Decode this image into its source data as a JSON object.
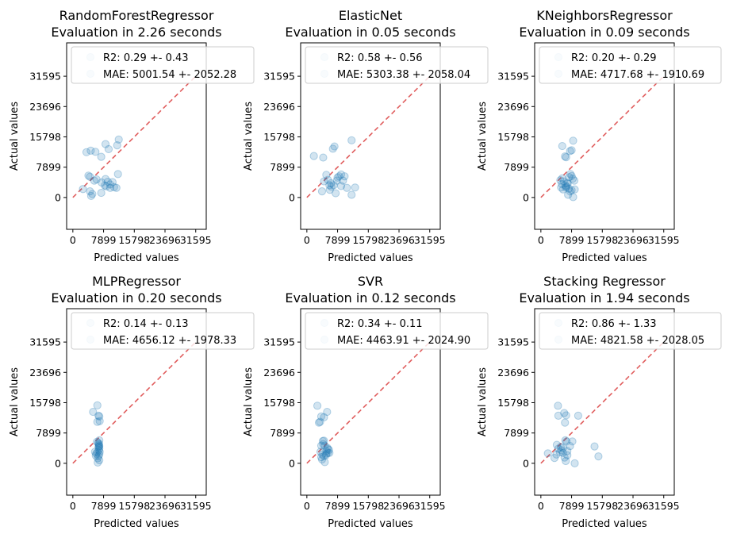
{
  "colors": {
    "point": "#1f77b4",
    "diagonal": "#d62728",
    "axes": "#000000",
    "legend_border": "#cccccc"
  },
  "chart_data": [
    {
      "type": "scatter",
      "title": "RandomForestRegressor",
      "subtitle": "Evaluation in 2.26 seconds",
      "xlabel": "Predicted values",
      "ylabel": "Actual values",
      "xlim": [
        -1600,
        34300
      ],
      "ylim": [
        -8300,
        40300
      ],
      "xticks": [
        0,
        7899,
        15798,
        23696,
        31595
      ],
      "yticks": [
        0,
        7899,
        15798,
        23696,
        31595
      ],
      "legend": [
        "R2: 0.29 +- 0.43",
        "MAE: 5001.54 +- 2052.28"
      ],
      "points": [
        [
          2600,
          2200
        ],
        [
          3500,
          11800
        ],
        [
          4600,
          12200
        ],
        [
          5800,
          11900
        ],
        [
          7300,
          10600
        ],
        [
          8400,
          13900
        ],
        [
          9200,
          12600
        ],
        [
          11400,
          13600
        ],
        [
          11800,
          15100
        ],
        [
          4000,
          5700
        ],
        [
          4400,
          5400
        ],
        [
          5500,
          4400
        ],
        [
          6100,
          4700
        ],
        [
          7400,
          3900
        ],
        [
          8200,
          3100
        ],
        [
          8400,
          4800
        ],
        [
          9000,
          4100
        ],
        [
          9600,
          3400
        ],
        [
          10200,
          4000
        ],
        [
          10600,
          2700
        ],
        [
          11200,
          2500
        ],
        [
          11600,
          6100
        ],
        [
          4400,
          1600
        ],
        [
          4700,
          400
        ],
        [
          5000,
          900
        ],
        [
          7300,
          1200
        ],
        [
          8600,
          2900
        ],
        [
          9600,
          2500
        ]
      ]
    },
    {
      "type": "scatter",
      "title": "ElasticNet",
      "subtitle": "Evaluation in 0.05 seconds",
      "xlabel": "Predicted values",
      "ylabel": "Actual values",
      "xlim": [
        -1600,
        34300
      ],
      "ylim": [
        -8300,
        40300
      ],
      "xticks": [
        0,
        7899,
        15798,
        23696,
        31595
      ],
      "yticks": [
        0,
        7899,
        15798,
        23696,
        31595
      ],
      "legend": [
        "R2: 0.58 +- 0.56",
        "MAE: 5303.38 +- 2058.04"
      ],
      "points": [
        [
          1800,
          10800
        ],
        [
          4200,
          10400
        ],
        [
          6700,
          12700
        ],
        [
          7100,
          13300
        ],
        [
          11500,
          14900
        ],
        [
          5000,
          5900
        ],
        [
          5400,
          4600
        ],
        [
          5800,
          3200
        ],
        [
          6300,
          2800
        ],
        [
          6900,
          3200
        ],
        [
          7700,
          4400
        ],
        [
          8300,
          5500
        ],
        [
          8800,
          6000
        ],
        [
          9300,
          4400
        ],
        [
          9700,
          5500
        ],
        [
          10300,
          2500
        ],
        [
          11500,
          700
        ],
        [
          12400,
          2600
        ],
        [
          3900,
          1600
        ],
        [
          5900,
          2000
        ],
        [
          7400,
          1100
        ],
        [
          8800,
          3000
        ],
        [
          4400,
          4200
        ],
        [
          6200,
          3700
        ],
        [
          7900,
          5200
        ]
      ]
    },
    {
      "type": "scatter",
      "title": "KNeighborsRegressor",
      "subtitle": "Evaluation in 0.09 seconds",
      "xlabel": "Predicted values",
      "ylabel": "Actual values",
      "xlim": [
        -1600,
        34300
      ],
      "ylim": [
        -8300,
        40300
      ],
      "xticks": [
        0,
        7899,
        15798,
        23696,
        31595
      ],
      "yticks": [
        0,
        7899,
        15798,
        23696,
        31595
      ],
      "legend": [
        "R2: 0.20 +- 0.29",
        "MAE: 4717.68 +- 1910.69"
      ],
      "points": [
        [
          5500,
          13400
        ],
        [
          6200,
          10700
        ],
        [
          6500,
          10500
        ],
        [
          7500,
          12100
        ],
        [
          7900,
          12300
        ],
        [
          8300,
          14800
        ],
        [
          5000,
          4500
        ],
        [
          5500,
          5000
        ],
        [
          5900,
          4200
        ],
        [
          6300,
          3100
        ],
        [
          6600,
          2800
        ],
        [
          6900,
          3600
        ],
        [
          7300,
          5300
        ],
        [
          7600,
          6100
        ],
        [
          7900,
          5600
        ],
        [
          8200,
          4900
        ],
        [
          8600,
          4400
        ],
        [
          5200,
          2600
        ],
        [
          5700,
          2100
        ],
        [
          6400,
          2600
        ],
        [
          7000,
          700
        ],
        [
          7500,
          1600
        ],
        [
          7900,
          1900
        ],
        [
          8300,
          100
        ],
        [
          8700,
          2100
        ],
        [
          5400,
          3500
        ],
        [
          6800,
          3800
        ],
        [
          7200,
          2300
        ]
      ]
    },
    {
      "type": "scatter",
      "title": "MLPRegressor",
      "subtitle": "Evaluation in 0.20 seconds",
      "xlabel": "Predicted values",
      "ylabel": "Actual values",
      "xlim": [
        -1600,
        34300
      ],
      "ylim": [
        -8300,
        40300
      ],
      "xticks": [
        0,
        7899,
        15798,
        23696,
        31595
      ],
      "yticks": [
        0,
        7899,
        15798,
        23696,
        31595
      ],
      "legend": [
        "R2: 0.14 +- 0.13",
        "MAE: 4656.12 +- 1978.33"
      ],
      "points": [
        [
          5200,
          13400
        ],
        [
          6300,
          15100
        ],
        [
          6600,
          12400
        ],
        [
          6900,
          11000
        ],
        [
          6800,
          12200
        ],
        [
          6300,
          10800
        ],
        [
          5700,
          3000
        ],
        [
          6000,
          2500
        ],
        [
          6300,
          2900
        ],
        [
          6400,
          1300
        ],
        [
          6400,
          200
        ],
        [
          6600,
          1900
        ],
        [
          6700,
          3400
        ],
        [
          6700,
          4400
        ],
        [
          6700,
          5100
        ],
        [
          6800,
          4500
        ],
        [
          6800,
          6000
        ],
        [
          6800,
          3900
        ],
        [
          6800,
          2300
        ],
        [
          6800,
          800
        ],
        [
          6500,
          5300
        ],
        [
          6600,
          4200
        ],
        [
          6900,
          3000
        ],
        [
          5900,
          2000
        ],
        [
          6200,
          5600
        ],
        [
          6700,
          4800
        ]
      ]
    },
    {
      "type": "scatter",
      "title": "SVR",
      "subtitle": "Evaluation in 0.12 seconds",
      "xlabel": "Predicted values",
      "ylabel": "Actual values",
      "xlim": [
        -1600,
        34300
      ],
      "ylim": [
        -8300,
        40300
      ],
      "xticks": [
        0,
        7899,
        15798,
        23696,
        31595
      ],
      "yticks": [
        0,
        7899,
        15798,
        23696,
        31595
      ],
      "legend": [
        "R2: 0.34 +- 0.11",
        "MAE: 4463.91 +- 2024.90"
      ],
      "points": [
        [
          2700,
          15000
        ],
        [
          3700,
          12200
        ],
        [
          4400,
          12000
        ],
        [
          5200,
          13400
        ],
        [
          3100,
          10600
        ],
        [
          3400,
          10800
        ],
        [
          3700,
          4600
        ],
        [
          4100,
          5800
        ],
        [
          4200,
          5000
        ],
        [
          4400,
          5900
        ],
        [
          4600,
          4600
        ],
        [
          5000,
          3200
        ],
        [
          5400,
          3700
        ],
        [
          5700,
          3500
        ],
        [
          5800,
          2700
        ],
        [
          3700,
          1600
        ],
        [
          4000,
          2300
        ],
        [
          4400,
          1900
        ],
        [
          4600,
          300
        ],
        [
          5000,
          2500
        ],
        [
          5400,
          2700
        ],
        [
          3500,
          3000
        ],
        [
          4900,
          2100
        ],
        [
          5300,
          4000
        ],
        [
          3900,
          1000
        ]
      ]
    },
    {
      "type": "scatter",
      "title": "Stacking Regressor",
      "subtitle": "Evaluation in 1.94 seconds",
      "xlabel": "Predicted values",
      "ylabel": "Actual values",
      "xlim": [
        -1600,
        34300
      ],
      "ylim": [
        -8300,
        40300
      ],
      "xticks": [
        0,
        7899,
        15798,
        23696,
        31595
      ],
      "yticks": [
        0,
        7899,
        15798,
        23696,
        31595
      ],
      "legend": [
        "R2: 0.86 +- 1.33",
        "MAE: 4821.58 +- 2028.05"
      ],
      "points": [
        [
          4400,
          15000
        ],
        [
          4500,
          12400
        ],
        [
          6000,
          13100
        ],
        [
          6500,
          12500
        ],
        [
          9600,
          12400
        ],
        [
          6200,
          10600
        ],
        [
          4100,
          4800
        ],
        [
          4500,
          3800
        ],
        [
          5100,
          4300
        ],
        [
          5300,
          3400
        ],
        [
          5700,
          4000
        ],
        [
          6300,
          6000
        ],
        [
          6600,
          5700
        ],
        [
          7500,
          4500
        ],
        [
          8100,
          5700
        ],
        [
          1800,
          2600
        ],
        [
          3500,
          1400
        ],
        [
          4000,
          2300
        ],
        [
          6100,
          1500
        ],
        [
          6400,
          600
        ],
        [
          6800,
          2100
        ],
        [
          6800,
          3200
        ],
        [
          8700,
          0
        ],
        [
          13800,
          4400
        ],
        [
          14800,
          1800
        ],
        [
          5700,
          2700
        ],
        [
          4900,
          2900
        ]
      ]
    }
  ]
}
